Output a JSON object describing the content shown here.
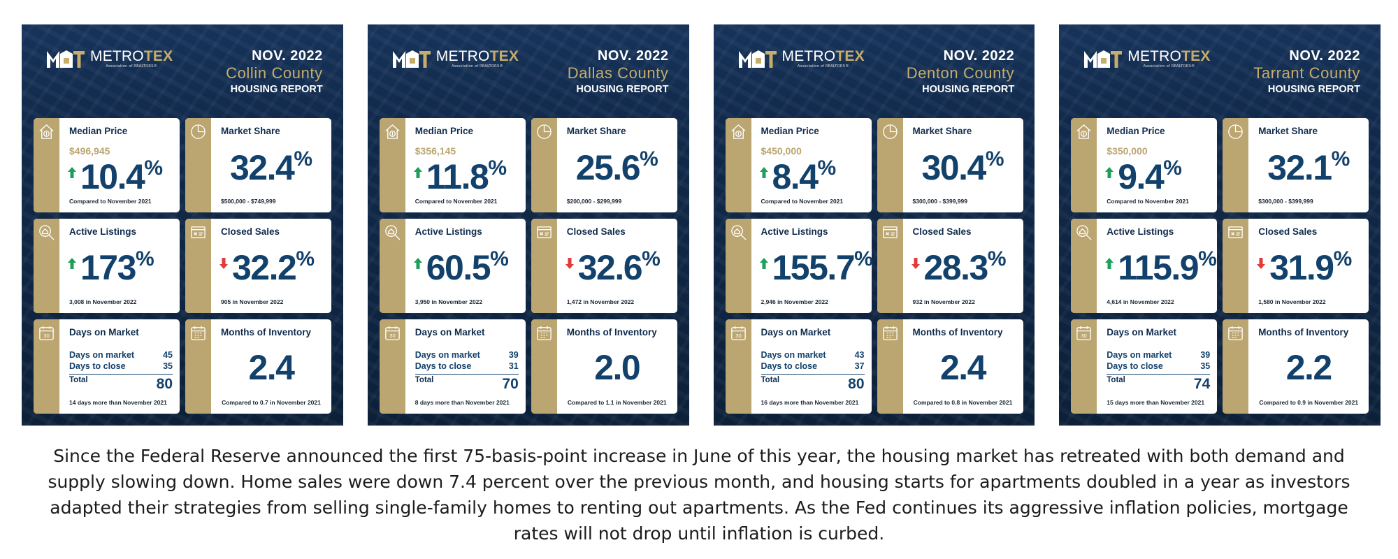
{
  "colors": {
    "navy": "#0c2039",
    "gold": "#bba570",
    "value_blue": "#12416b",
    "up_arrow": "#1ea05a",
    "down_arrow": "#e13b3b"
  },
  "logo": {
    "name_a": "METRO",
    "name_b": "TEX",
    "subtitle": "Association of REALTORS®"
  },
  "labels": {
    "median_price": "Median Price",
    "market_share": "Market Share",
    "active_listings": "Active Listings",
    "closed_sales": "Closed Sales",
    "days_on_market": "Days on Market",
    "months_inventory": "Months of Inventory",
    "dom_row": "Days on market",
    "close_row": "Days to close",
    "total": "Total",
    "pct": "%"
  },
  "reports": [
    {
      "date": "NOV. 2022",
      "county": "Collin County",
      "report_label": "HOUSING REPORT",
      "median_price": "$496,945",
      "median_change": "10.4",
      "median_direction": "up",
      "median_note": "Compared to November 2021",
      "market_share": "32.4",
      "market_share_range": "$500,000 - $749,999",
      "active_listings": "173",
      "active_direction": "up",
      "active_note": "3,008 in November 2022",
      "closed_sales": "32.2",
      "closed_direction": "down",
      "closed_note": "905 in November 2022",
      "days_on_market": "45",
      "days_to_close": "35",
      "days_total": "80",
      "days_note": "14 days more than November 2021",
      "months_inventory": "2.4",
      "months_note": "Compared to 0.7 in November 2021"
    },
    {
      "date": "NOV. 2022",
      "county": "Dallas County",
      "report_label": "HOUSING REPORT",
      "median_price": "$356,145",
      "median_change": "11.8",
      "median_direction": "up",
      "median_note": "Compared to November 2021",
      "market_share": "25.6",
      "market_share_range": "$200,000 - $299,999",
      "active_listings": "60.5",
      "active_direction": "up",
      "active_note": "3,950 in November 2022",
      "closed_sales": "32.6",
      "closed_direction": "down",
      "closed_note": "1,472 in November 2022",
      "days_on_market": "39",
      "days_to_close": "31",
      "days_total": "70",
      "days_note": "8 days more than November 2021",
      "months_inventory": "2.0",
      "months_note": "Compared to 1.1 in November 2021"
    },
    {
      "date": "NOV. 2022",
      "county": "Denton County",
      "report_label": "HOUSING REPORT",
      "median_price": "$450,000",
      "median_change": "8.4",
      "median_direction": "up",
      "median_note": "Compared to November 2021",
      "market_share": "30.4",
      "market_share_range": "$300,000 - $399,999",
      "active_listings": "155.7",
      "active_direction": "up",
      "active_note": "2,946 in November 2022",
      "closed_sales": "28.3",
      "closed_direction": "down",
      "closed_note": "932 in November 2022",
      "days_on_market": "43",
      "days_to_close": "37",
      "days_total": "80",
      "days_note": "16 days more than November 2021",
      "months_inventory": "2.4",
      "months_note": "Compared to 0.8 in November 2021"
    },
    {
      "date": "NOV. 2022",
      "county": "Tarrant County",
      "report_label": "HOUSING REPORT",
      "median_price": "$350,000",
      "median_change": "9.4",
      "median_direction": "up",
      "median_note": "Compared to November 2021",
      "market_share": "32.1",
      "market_share_range": "$300,000 - $399,999",
      "active_listings": "115.9",
      "active_direction": "up",
      "active_note": "4,614 in November 2022",
      "closed_sales": "31.9",
      "closed_direction": "down",
      "closed_note": "1,580 in November 2022",
      "days_on_market": "39",
      "days_to_close": "35",
      "days_total": "74",
      "days_note": "15 days more than November 2021",
      "months_inventory": "2.2",
      "months_note": "Compared to 0.9 in November 2021"
    }
  ],
  "summary": "Since the Federal Reserve announced the first 75-basis-point increase in June of this year, the housing market has retreated with both demand and supply slowing down. Home sales were down 7.4 percent over the previous month, and housing starts for apartments doubled in a year as investors adapted their strategies from selling single-family homes to renting out apartments. As the Fed continues its aggressive inflation policies, mortgage rates will not drop until inflation is curbed."
}
